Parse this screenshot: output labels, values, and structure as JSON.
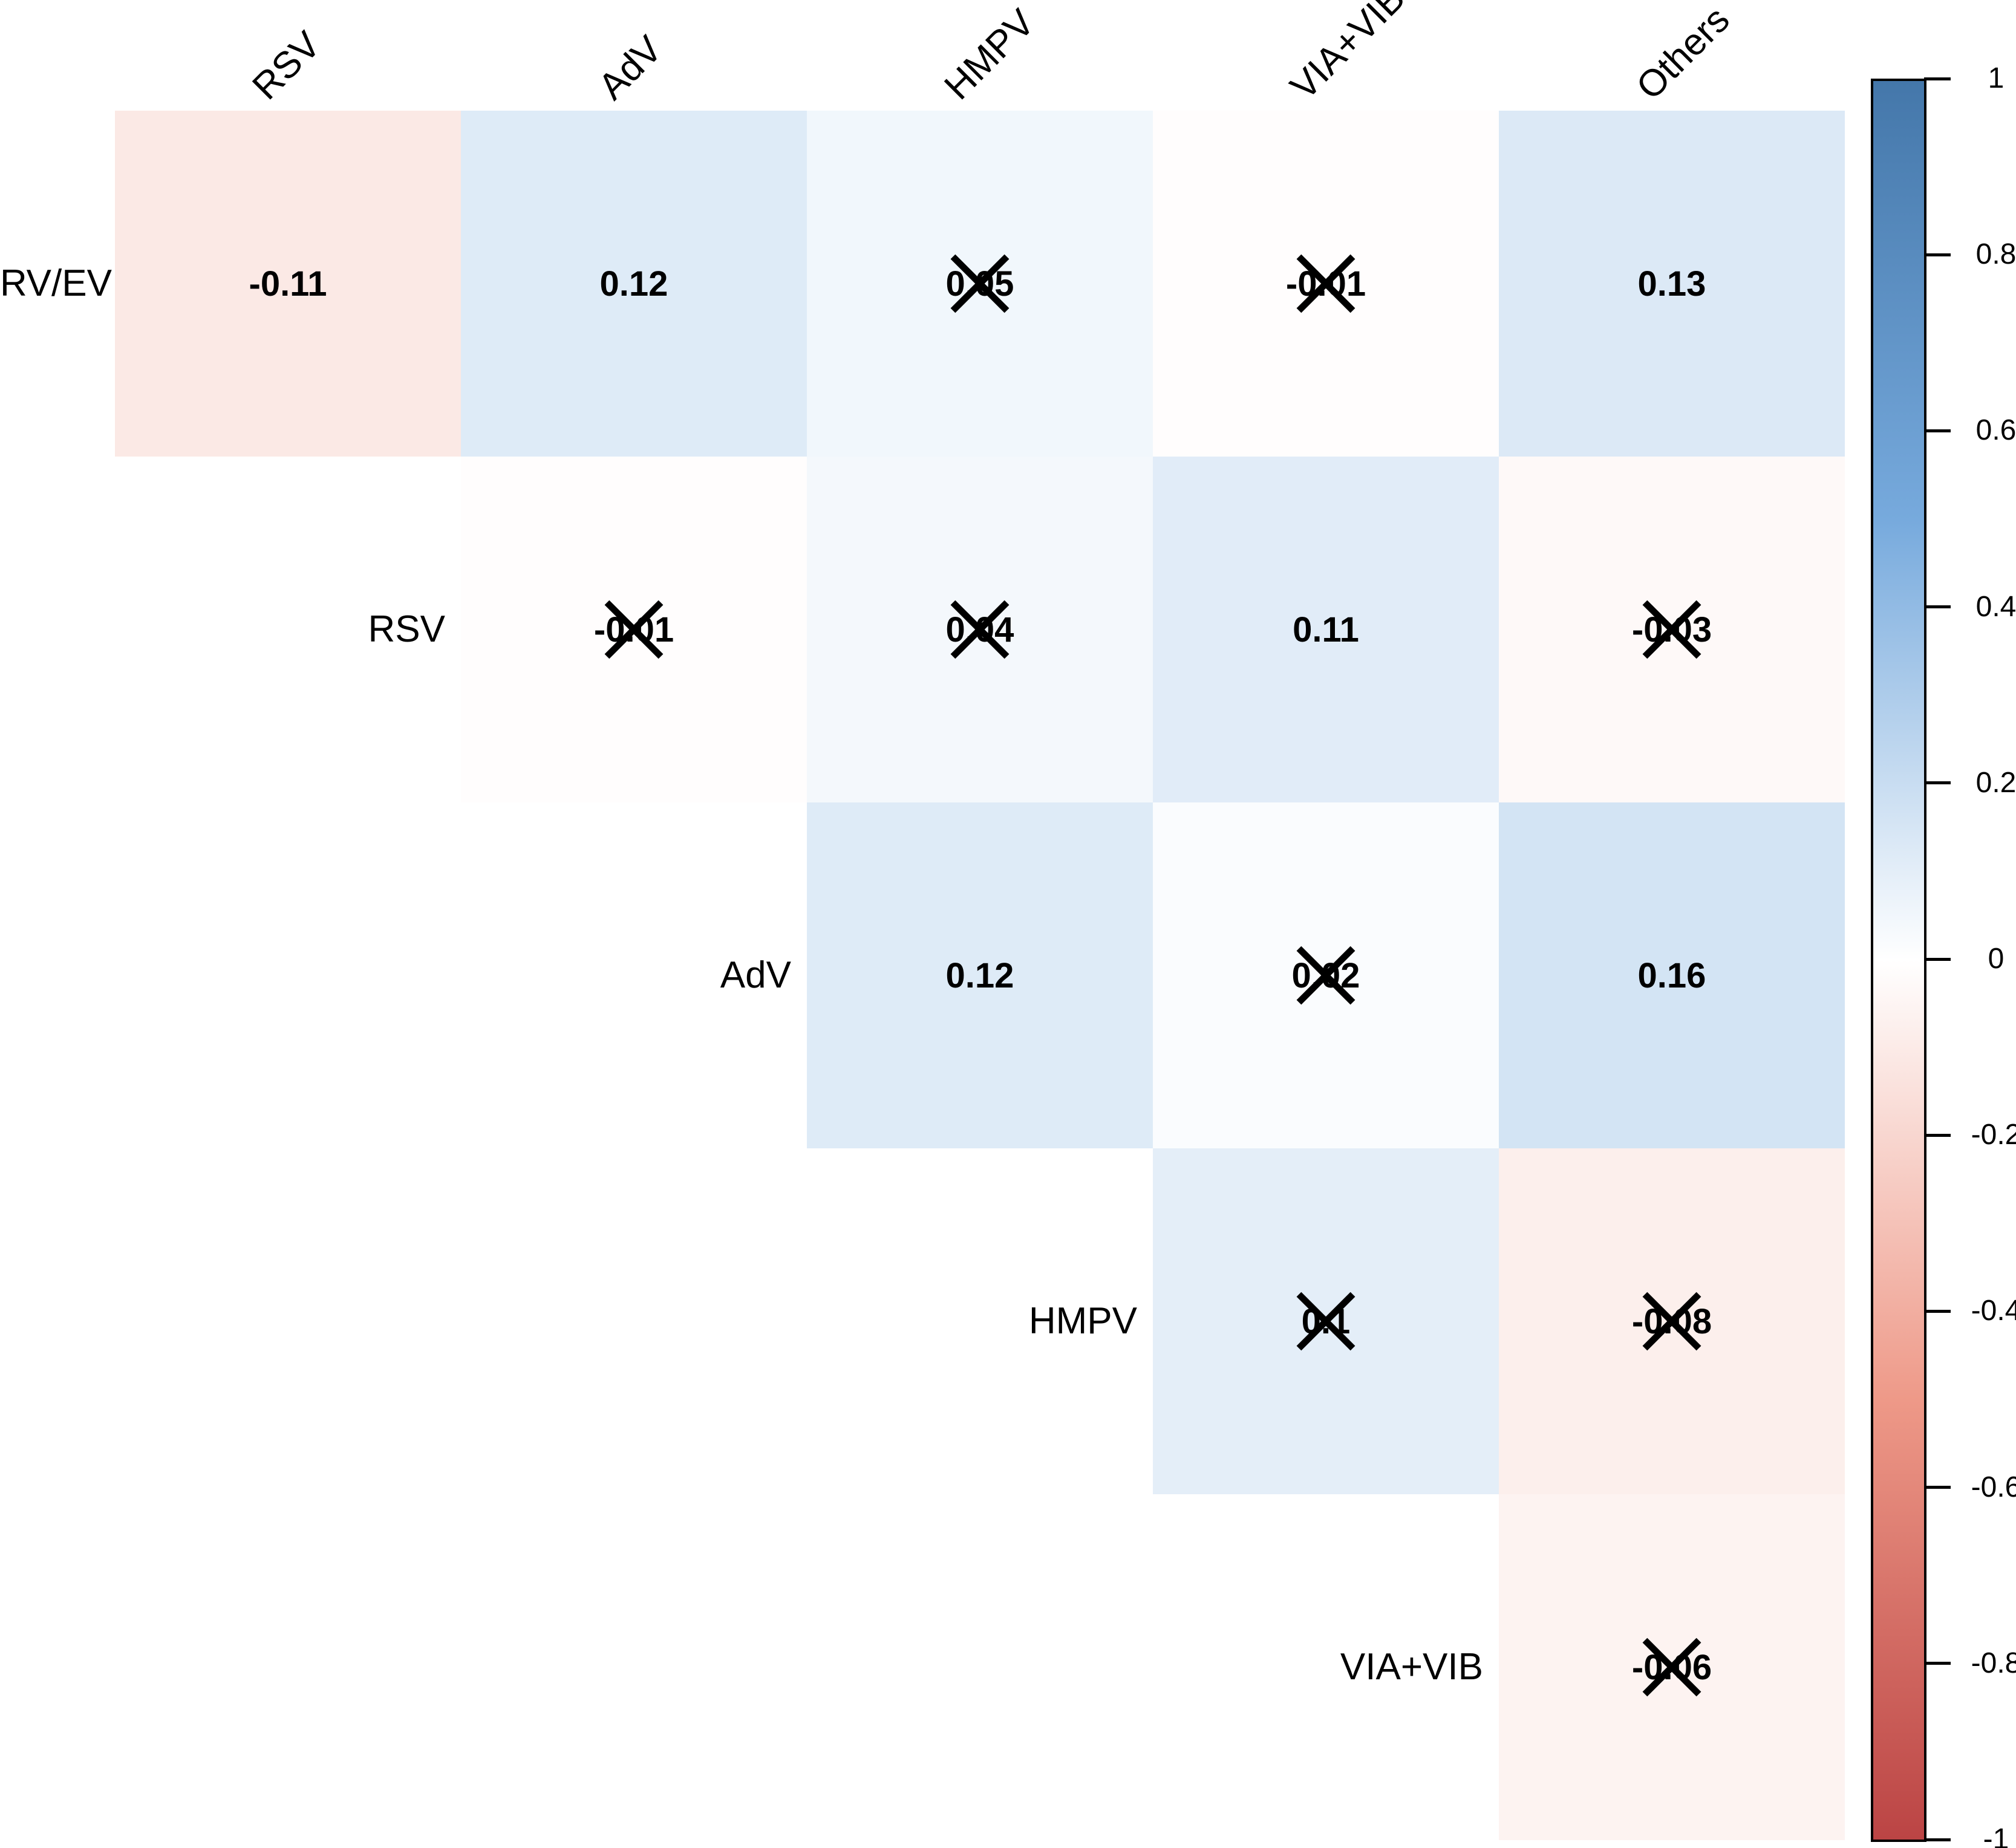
{
  "chart_data": {
    "type": "heatmap",
    "subtype": "upper-triangular-correlation-matrix",
    "title": "",
    "variables": [
      "RV/EV",
      "RSV",
      "AdV",
      "HMPV",
      "VIA+VIB",
      "Others"
    ],
    "row_labels": [
      "RV/EV",
      "RSV",
      "AdV",
      "HMPV",
      "VIA+VIB"
    ],
    "col_labels": [
      "RSV",
      "AdV",
      "HMPV",
      "VIA+VIB",
      "Others"
    ],
    "cells": [
      {
        "row": "RV/EV",
        "col": "RSV",
        "value": -0.11,
        "label": "-0.11",
        "crossed": false
      },
      {
        "row": "RV/EV",
        "col": "AdV",
        "value": 0.12,
        "label": "0.12",
        "crossed": false
      },
      {
        "row": "RV/EV",
        "col": "HMPV",
        "value": 0.05,
        "label": "0.05",
        "crossed": true
      },
      {
        "row": "RV/EV",
        "col": "VIA+VIB",
        "value": -0.01,
        "label": "-0.01",
        "crossed": true
      },
      {
        "row": "RV/EV",
        "col": "Others",
        "value": 0.13,
        "label": "0.13",
        "crossed": false
      },
      {
        "row": "RSV",
        "col": "AdV",
        "value": -0.01,
        "label": "-0.01",
        "crossed": true
      },
      {
        "row": "RSV",
        "col": "HMPV",
        "value": 0.04,
        "label": "0.04",
        "crossed": true
      },
      {
        "row": "RSV",
        "col": "VIA+VIB",
        "value": 0.11,
        "label": "0.11",
        "crossed": false
      },
      {
        "row": "RSV",
        "col": "Others",
        "value": -0.03,
        "label": "-0.03",
        "crossed": true
      },
      {
        "row": "AdV",
        "col": "HMPV",
        "value": 0.12,
        "label": "0.12",
        "crossed": false
      },
      {
        "row": "AdV",
        "col": "VIA+VIB",
        "value": 0.02,
        "label": "0.02",
        "crossed": true
      },
      {
        "row": "AdV",
        "col": "Others",
        "value": 0.16,
        "label": "0.16",
        "crossed": false
      },
      {
        "row": "HMPV",
        "col": "VIA+VIB",
        "value": 0.1,
        "label": "0.1",
        "crossed": true
      },
      {
        "row": "HMPV",
        "col": "Others",
        "value": -0.08,
        "label": "-0.08",
        "crossed": true
      },
      {
        "row": "VIA+VIB",
        "col": "Others",
        "value": -0.06,
        "label": "-0.06",
        "crossed": true
      }
    ],
    "colorbar": {
      "range": [
        -1,
        1
      ],
      "tick_labels": [
        "1",
        "0.8",
        "0.6",
        "0.4",
        "0.2",
        "0",
        "-0.2",
        "-0.4",
        "-0.6",
        "-0.8",
        "-1"
      ],
      "palette_stops": [
        {
          "value": -1,
          "color": "#BB4444"
        },
        {
          "value": -0.5,
          "color": "#EE9988"
        },
        {
          "value": 0,
          "color": "#FFFFFF"
        },
        {
          "value": 0.5,
          "color": "#77AADD"
        },
        {
          "value": 1,
          "color": "#4477AA"
        }
      ]
    },
    "layout_hints": {
      "grid": false,
      "cell_text_style": "bold black correlation coefficients",
      "non_significant_marker": "black X cross over coefficient",
      "column_labels_rotation_deg": 45,
      "legend_position": "right vertical colorbar"
    }
  }
}
